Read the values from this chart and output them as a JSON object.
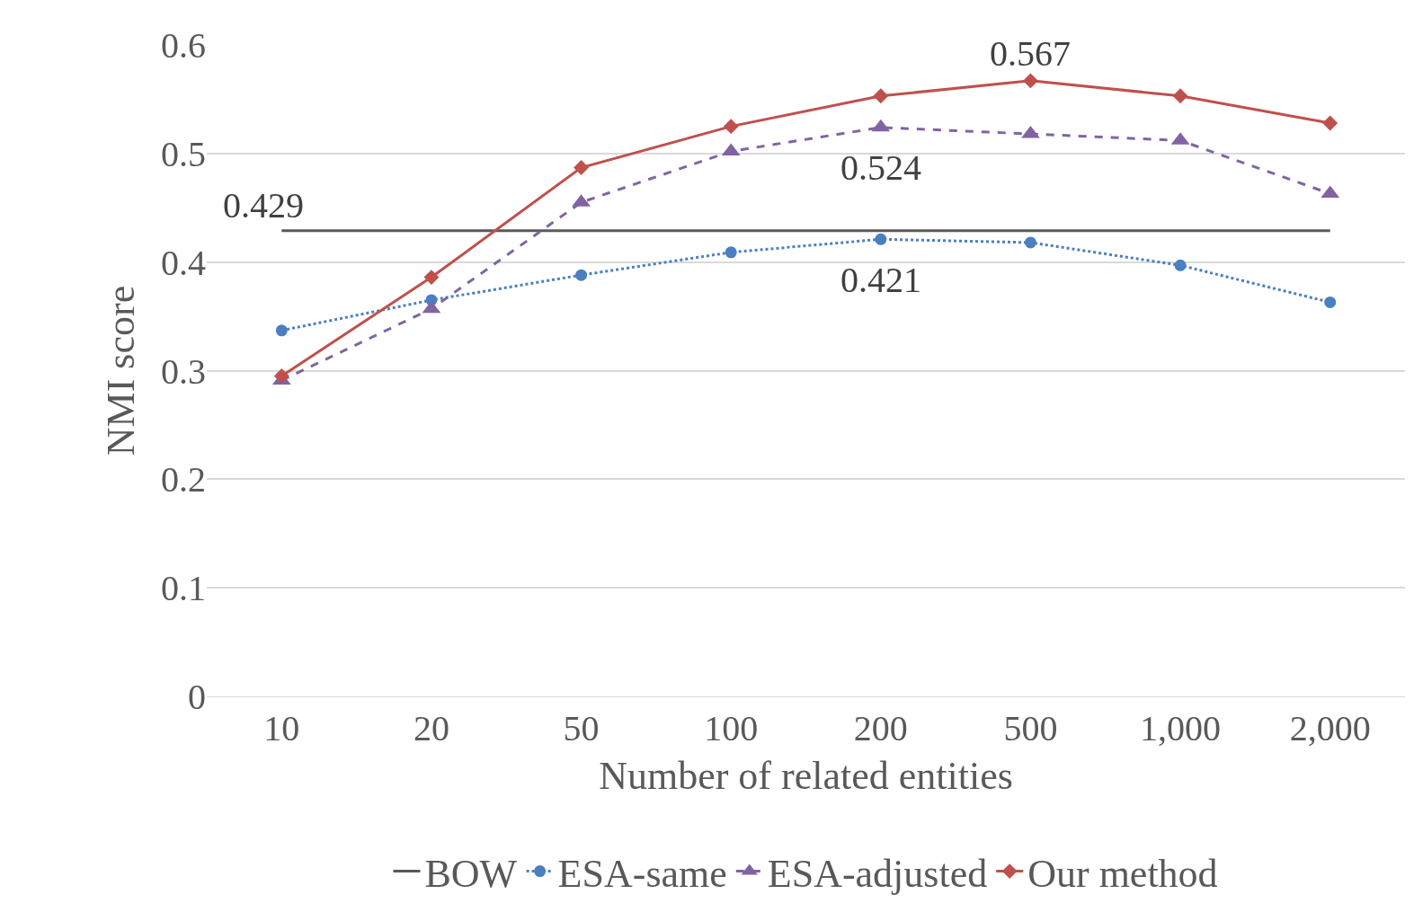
{
  "chart_data": {
    "type": "line",
    "xlabel": "Number of related entities",
    "ylabel": "NMI score",
    "categories": [
      "10",
      "20",
      "50",
      "100",
      "200",
      "500",
      "1,000",
      "2,000"
    ],
    "series": [
      {
        "name": "BOW",
        "color": "#595959",
        "marker": "none",
        "line_style": "solid",
        "values": [
          0.429,
          0.429,
          0.429,
          0.429,
          0.429,
          0.429,
          0.429,
          0.429
        ]
      },
      {
        "name": "ESA-same",
        "color": "#4a7fc1",
        "marker": "circle",
        "line_style": "dotted",
        "values": [
          0.337,
          0.365,
          0.388,
          0.409,
          0.421,
          0.418,
          0.397,
          0.363
        ]
      },
      {
        "name": "ESA-adjusted",
        "color": "#8064a2",
        "marker": "triangle",
        "line_style": "dashed",
        "values": [
          0.291,
          0.357,
          0.455,
          0.502,
          0.524,
          0.518,
          0.512,
          0.463
        ]
      },
      {
        "name": "Our method",
        "color": "#c0504d",
        "marker": "diamond",
        "line_style": "solid",
        "values": [
          0.295,
          0.386,
          0.487,
          0.525,
          0.553,
          0.567,
          0.553,
          0.528
        ]
      }
    ],
    "annotations": [
      {
        "text": "0.429",
        "x": "10",
        "y": 0.429
      },
      {
        "text": "0.567",
        "x": "500",
        "y": 0.567
      },
      {
        "text": "0.524",
        "x": "200",
        "y": 0.524
      },
      {
        "text": "0.421",
        "x": "200",
        "y": 0.421
      }
    ],
    "ylim": [
      0,
      0.6
    ],
    "yticks": [
      0,
      0.1,
      0.2,
      0.3,
      0.4,
      0.5,
      0.6
    ],
    "grid": "y",
    "legend": "bottom"
  }
}
